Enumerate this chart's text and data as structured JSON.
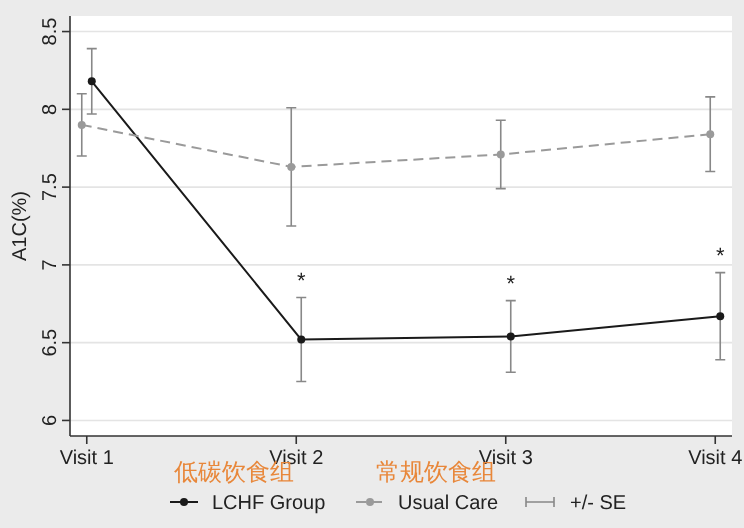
{
  "chart_data": {
    "type": "line",
    "ylabel": "A1C(%)",
    "categories": [
      "Visit 1",
      "Visit 2",
      "Visit 3",
      "Visit 4"
    ],
    "ylim": [
      5.9,
      8.6
    ],
    "yticks": [
      6,
      6.5,
      7,
      7.5,
      8,
      8.5
    ],
    "grid": "y",
    "legend": "bottom",
    "marker": "circle",
    "series": [
      {
        "name": "LCHF Group",
        "color": "#1a1a1a",
        "line_style": "solid",
        "values": [
          8.18,
          6.52,
          6.54,
          6.67
        ],
        "errors": [
          0.21,
          0.27,
          0.23,
          0.28
        ]
      },
      {
        "name": "Usual Care",
        "color": "#9a9a9a",
        "line_style": "dashed",
        "values": [
          7.9,
          7.63,
          7.71,
          7.84
        ],
        "errors": [
          0.2,
          0.38,
          0.22,
          0.24
        ]
      }
    ],
    "annotations": [
      "*",
      "*",
      "*",
      "低碳饮食组",
      "常规饮食组",
      "+/- SE"
    ]
  }
}
